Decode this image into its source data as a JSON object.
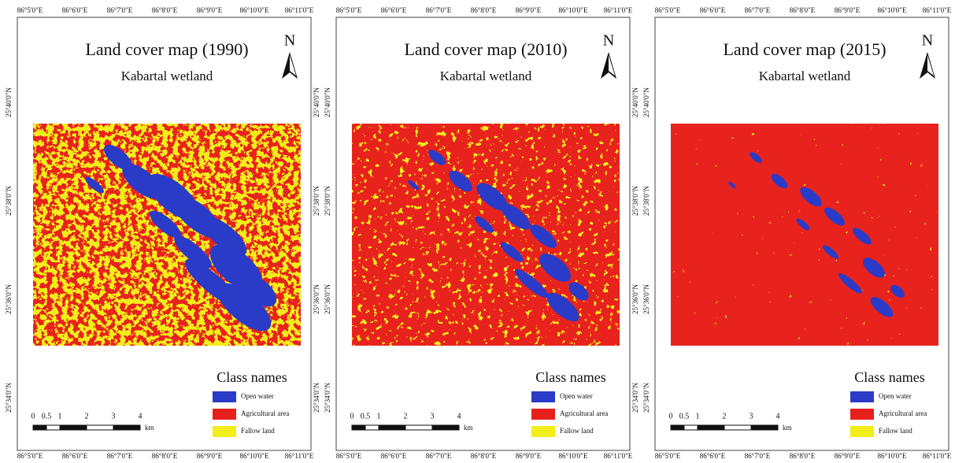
{
  "lon_labels": [
    "86°5'0\"E",
    "86°6'0\"E",
    "86°7'0\"E",
    "86°8'0\"E",
    "86°9'0\"E",
    "86°10'0\"E",
    "86°11'0\"E"
  ],
  "lat_labels": [
    "25°40'0\"N",
    "25°38'0\"N",
    "25°36'0\"N",
    "25°34'0\"N"
  ],
  "panels": [
    {
      "title": "Land cover map (1990)",
      "subtitle": "Kabartal wetland",
      "north": "N",
      "legend": {
        "title": "Class names",
        "items": [
          {
            "label": "Open water",
            "color": "#2a3bc8"
          },
          {
            "label": "Agricultural area",
            "color": "#e8201c"
          },
          {
            "label": "Fallow land",
            "color": "#f2ee1a"
          }
        ]
      },
      "scale": {
        "ticks": [
          "0",
          "0.5",
          "1",
          "2",
          "3",
          "4"
        ],
        "unit": "km"
      }
    },
    {
      "title": "Land cover map (2010)",
      "subtitle": "Kabartal wetland",
      "north": "N",
      "legend": {
        "title": "Class names",
        "items": [
          {
            "label": "Open water",
            "color": "#2a3bc8"
          },
          {
            "label": "Agricultural area",
            "color": "#e8201c"
          },
          {
            "label": "Fallow land",
            "color": "#f2ee1a"
          }
        ]
      },
      "scale": {
        "ticks": [
          "0",
          "0.5",
          "1",
          "2",
          "3",
          "4"
        ],
        "unit": "km"
      }
    },
    {
      "title": "Land cover map (2015)",
      "subtitle": "Kabartal wetland",
      "north": "N",
      "legend": {
        "title": "Class names",
        "items": [
          {
            "label": "Open water",
            "color": "#2a3bc8"
          },
          {
            "label": "Agricultural area",
            "color": "#e8201c"
          },
          {
            "label": "Fallow land",
            "color": "#f2ee1a"
          }
        ]
      },
      "scale": {
        "ticks": [
          "0",
          "0.5",
          "1",
          "2",
          "3",
          "4"
        ],
        "unit": "km"
      }
    }
  ]
}
